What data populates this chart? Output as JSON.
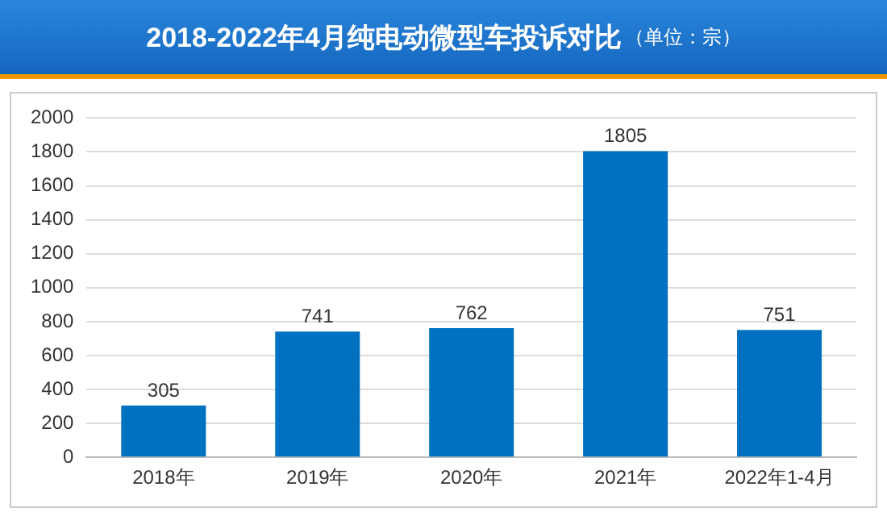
{
  "chart_data": {
    "type": "bar",
    "title": "2018-2022年4月纯电动微型车投诉对比",
    "subtitle": "（单位：宗）",
    "categories": [
      "2018年",
      "2019年",
      "2020年",
      "2021年",
      "2022年1-4月"
    ],
    "values": [
      305,
      741,
      762,
      1805,
      751
    ],
    "color": "#0070c0",
    "ylim": [
      0,
      2000
    ],
    "yticks": [
      0,
      200,
      400,
      600,
      800,
      1000,
      1200,
      1400,
      1600,
      1800,
      2000
    ],
    "grid": "y",
    "data_labels": true
  }
}
